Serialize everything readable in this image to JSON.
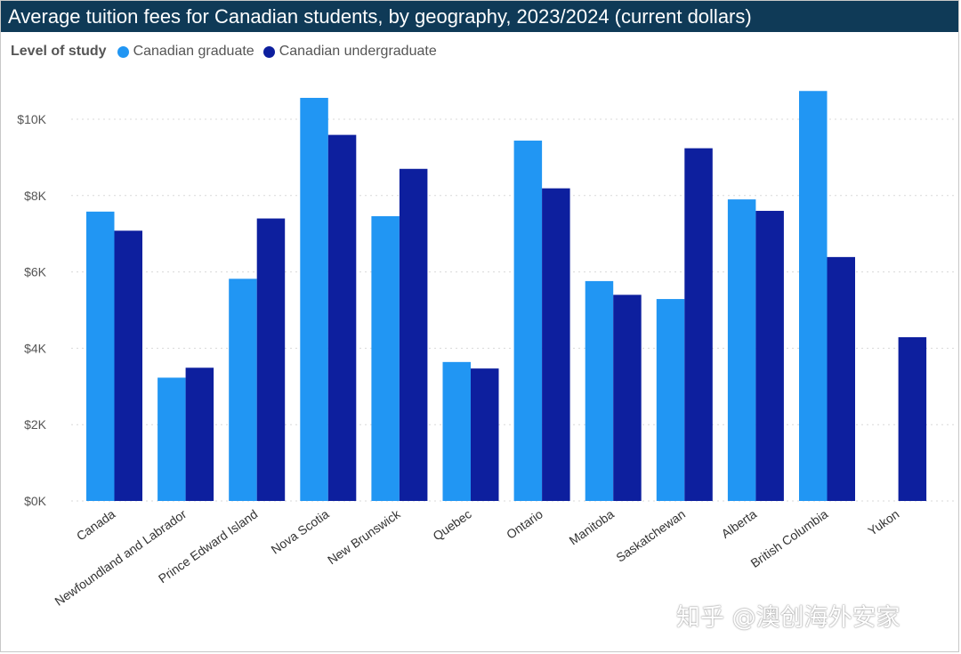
{
  "chart_data": {
    "type": "bar",
    "title": "Average tuition fees for Canadian students, by geography, 2023/2024 (current dollars)",
    "legend_title": "Level of study",
    "legend_position": "top-left",
    "categories": [
      "Canada",
      "Newfoundland and Labrador",
      "Prince Edward Island",
      "Nova Scotia",
      "New Brunswick",
      "Quebec",
      "Ontario",
      "Manitoba",
      "Saskatchewan",
      "Alberta",
      "British Columbia",
      "Yukon"
    ],
    "series": [
      {
        "name": "Canadian graduate",
        "color": "#2196f3",
        "values": [
          7580,
          3230,
          5820,
          10560,
          7460,
          3640,
          9440,
          5760,
          5290,
          7900,
          10740,
          null
        ]
      },
      {
        "name": "Canadian undergraduate",
        "color": "#0d1f9e",
        "values": [
          7080,
          3490,
          7400,
          9590,
          8700,
          3470,
          8190,
          5400,
          9240,
          7600,
          6390,
          4290
        ]
      }
    ],
    "yticks": [
      "$0K",
      "$2K",
      "$4K",
      "$6K",
      "$8K",
      "$10K"
    ],
    "ylim": [
      0,
      11000
    ],
    "grid": true
  },
  "watermark": "知乎 @澳创海外安家"
}
